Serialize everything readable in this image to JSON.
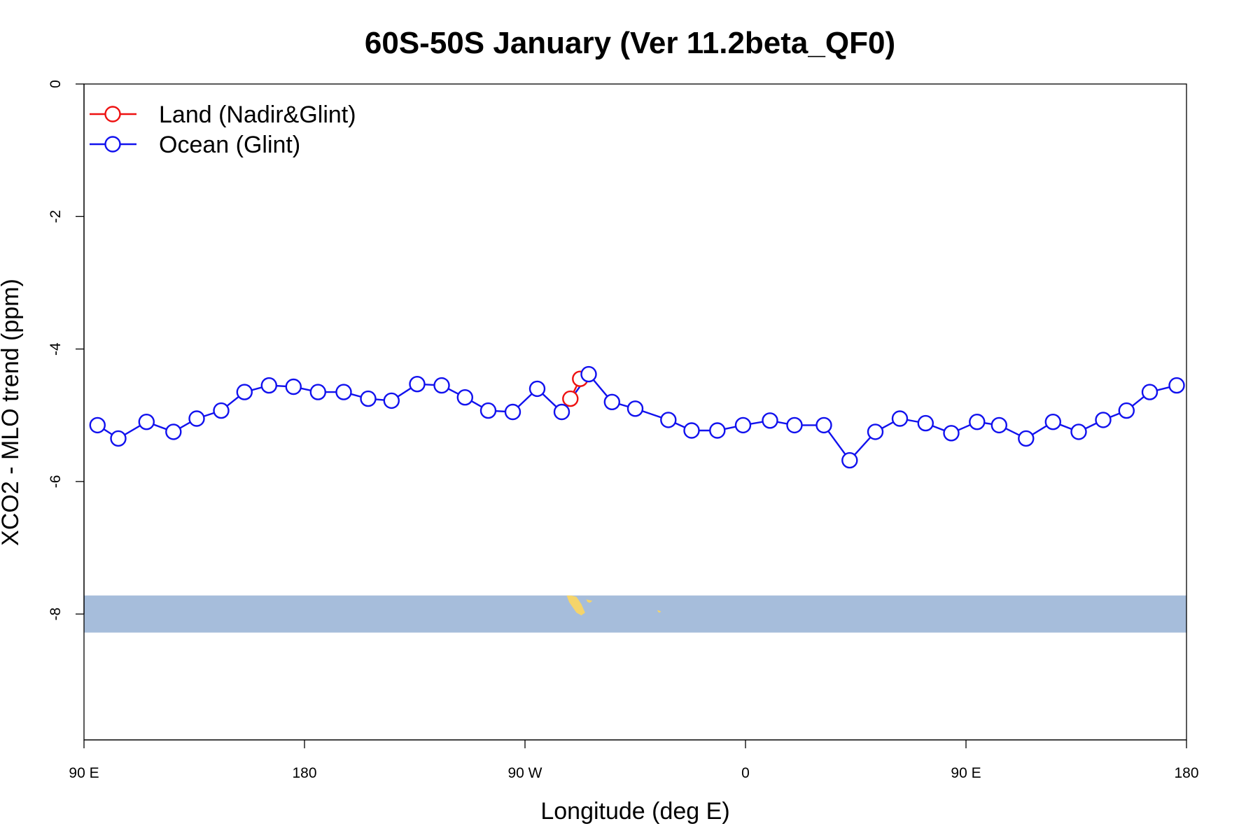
{
  "chart_data": {
    "type": "line",
    "title": "60S-50S January (Ver 11.2beta_QF0)",
    "xlabel": "Longitude (deg E)",
    "ylabel": "XCO2 - MLO trend (ppm)",
    "xlim": [
      90,
      540
    ],
    "ylim": [
      -9.9,
      0
    ],
    "x_ticks": [
      {
        "value": 90,
        "label": "90 E"
      },
      {
        "value": 180,
        "label": "180"
      },
      {
        "value": 270,
        "label": "90 W"
      },
      {
        "value": 360,
        "label": "0"
      },
      {
        "value": 450,
        "label": "90 E"
      },
      {
        "value": 540,
        "label": "180"
      }
    ],
    "y_ticks": [
      {
        "value": 0,
        "label": "0"
      },
      {
        "value": -2,
        "label": "-2"
      },
      {
        "value": -4,
        "label": "-4"
      },
      {
        "value": -6,
        "label": "-6"
      },
      {
        "value": -8,
        "label": "-8"
      }
    ],
    "grid": false,
    "legend_position": "top-left",
    "series": [
      {
        "name": "Land (Nadir&Glint)",
        "color": "#ee1111",
        "x": [
          288.5,
          292.5
        ],
        "y": [
          -4.75,
          -4.45
        ]
      },
      {
        "name": "Ocean (Glint)",
        "color": "#1111ee",
        "x": [
          95.5,
          104,
          115.5,
          126.5,
          136,
          146,
          155.5,
          165.5,
          175.5,
          185.5,
          196,
          206,
          215.5,
          226,
          236,
          245.5,
          255,
          265,
          275,
          285,
          296,
          305.5,
          315,
          328.5,
          338,
          348.5,
          359,
          370,
          380,
          392,
          402.5,
          413,
          423,
          433.5,
          444,
          454.5,
          463.5,
          474.5,
          485.5,
          496,
          506,
          515.5,
          525,
          536
        ],
        "y": [
          -5.15,
          -5.35,
          -5.1,
          -5.25,
          -5.05,
          -4.93,
          -4.65,
          -4.55,
          -4.57,
          -4.65,
          -4.65,
          -4.75,
          -4.78,
          -4.53,
          -4.55,
          -4.73,
          -4.93,
          -4.95,
          -4.6,
          -4.95,
          -4.38,
          -4.8,
          -4.9,
          -5.07,
          -5.23,
          -5.23,
          -5.15,
          -5.08,
          -5.15,
          -5.15,
          -5.68,
          -5.25,
          -5.05,
          -5.12,
          -5.27,
          -5.1,
          -5.15,
          -5.35,
          -5.1,
          -5.25,
          -5.07,
          -4.93,
          -4.65,
          -4.55
        ]
      }
    ],
    "map_band": {
      "y_range": [
        -8.28,
        -7.72
      ],
      "ocean_color": "#a6bddb",
      "land_color": "#f5d46a",
      "land_patches": [
        {
          "x": [
            287,
            289,
            291,
            293,
            294.5,
            293,
            291,
            289.5,
            288
          ],
          "y": [
            -7.72,
            -7.72,
            -7.74,
            -7.85,
            -7.98,
            -8.02,
            -7.98,
            -7.9,
            -7.82
          ]
        },
        {
          "x": [
            295,
            297.5,
            296.5,
            295.5
          ],
          "y": [
            -7.78,
            -7.8,
            -7.83,
            -7.82
          ]
        },
        {
          "x": [
            324,
            325.5,
            325,
            324.3
          ],
          "y": [
            -7.94,
            -7.96,
            -7.98,
            -7.97
          ]
        }
      ]
    }
  }
}
